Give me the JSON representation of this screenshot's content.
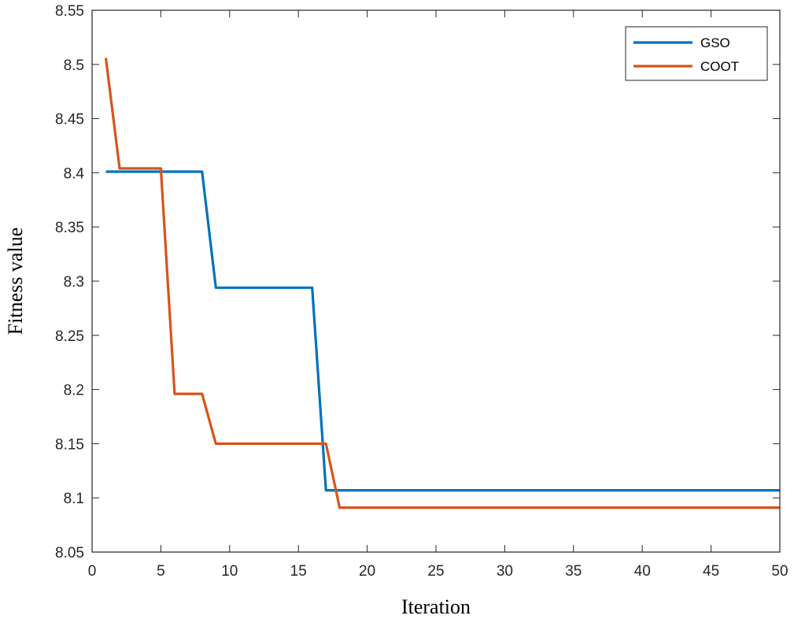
{
  "chart_data": {
    "type": "line",
    "xlabel": "Iteration",
    "ylabel": "Fitness value",
    "xlim": [
      0,
      50
    ],
    "ylim": [
      8.05,
      8.55
    ],
    "xticks": [
      "0",
      "5",
      "10",
      "15",
      "20",
      "25",
      "30",
      "35",
      "40",
      "45",
      "50"
    ],
    "yticks": [
      "8.05",
      "8.1",
      "8.15",
      "8.2",
      "8.25",
      "8.3",
      "8.35",
      "8.4",
      "8.45",
      "8.5",
      "8.55"
    ],
    "grid": false,
    "legend_position": "top-right",
    "series": [
      {
        "name": "GSO",
        "color": "#0072BD",
        "x": [
          1,
          8,
          9,
          16,
          17,
          50
        ],
        "y": [
          8.401,
          8.401,
          8.294,
          8.294,
          8.107,
          8.107
        ]
      },
      {
        "name": "COOT",
        "color": "#D95319",
        "x": [
          1,
          2,
          5,
          6,
          8,
          9,
          17,
          18,
          50
        ],
        "y": [
          8.506,
          8.404,
          8.404,
          8.196,
          8.196,
          8.15,
          8.15,
          8.091,
          8.091
        ]
      }
    ]
  }
}
